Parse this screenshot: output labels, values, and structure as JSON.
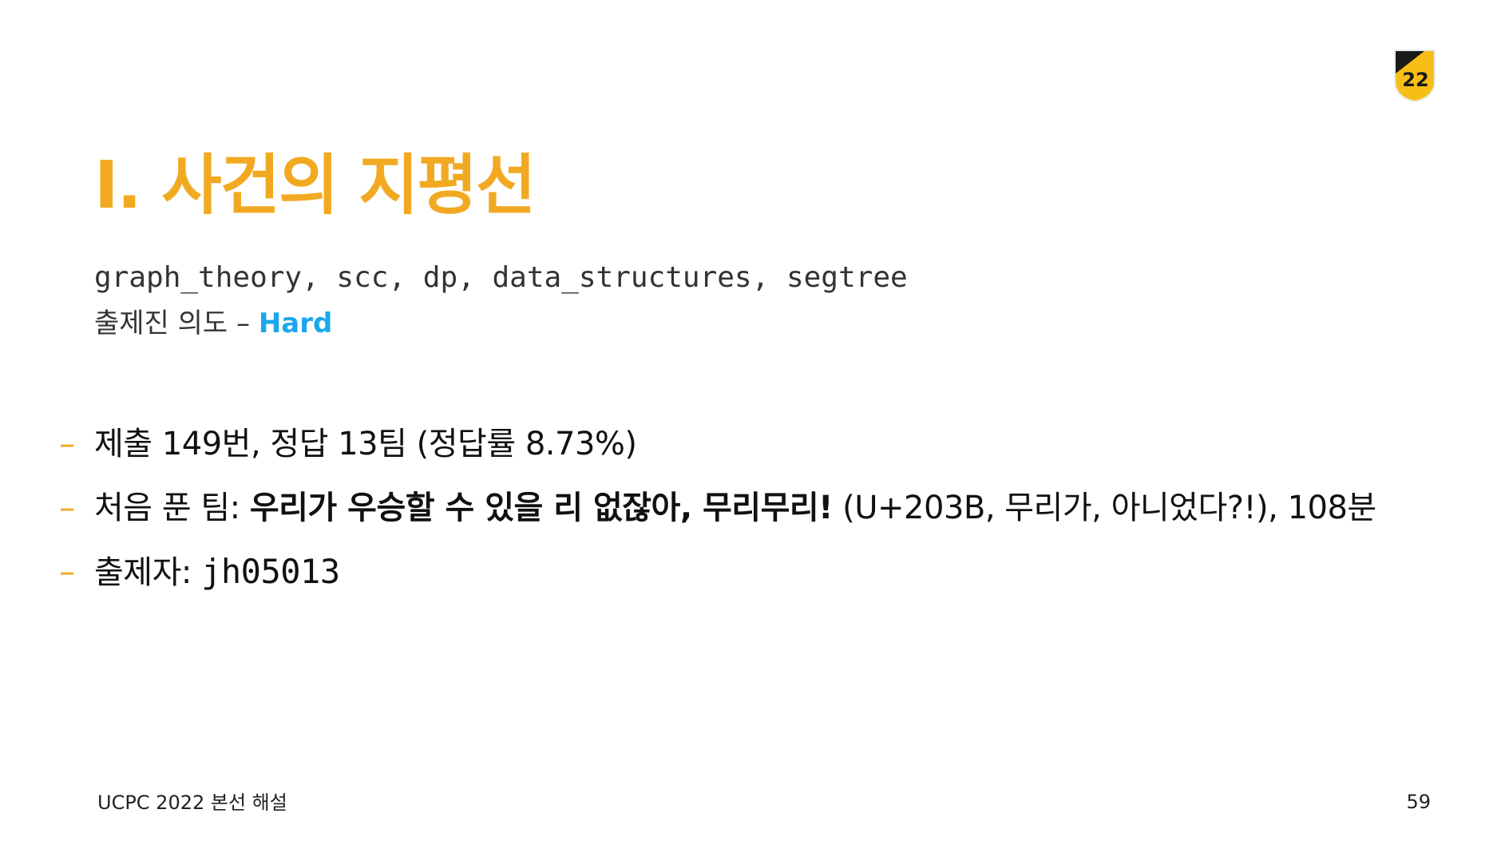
{
  "logo": {
    "icon": "ucpc-22-shield-icon",
    "text": "22",
    "colors": {
      "shield": "#f7be16",
      "dark": "#1a1a1a"
    }
  },
  "title": "I. 사건의 지평선",
  "tags": "graph_theory, scc, dp, data_structures, segtree",
  "intent": {
    "label": "출제진 의도 –",
    "level": "Hard",
    "level_color": "#1aa7ec"
  },
  "accent_color": "#f2a922",
  "bullets": [
    {
      "dash": "–",
      "text": "제출 149번, 정답 13팀 (정답률 8.73%)"
    },
    {
      "dash": "–",
      "label": "처음 푼 팀:",
      "team": "우리가 우승할 수 있을 리 없잖아, 무리무리!",
      "rest": "(U+203B, 무리가, 아니었다?!), 108분"
    },
    {
      "dash": "–",
      "label": "출제자:",
      "author": "jh05013"
    }
  ],
  "footer": {
    "left": "UCPC 2022 본선 해설",
    "page": "59"
  }
}
